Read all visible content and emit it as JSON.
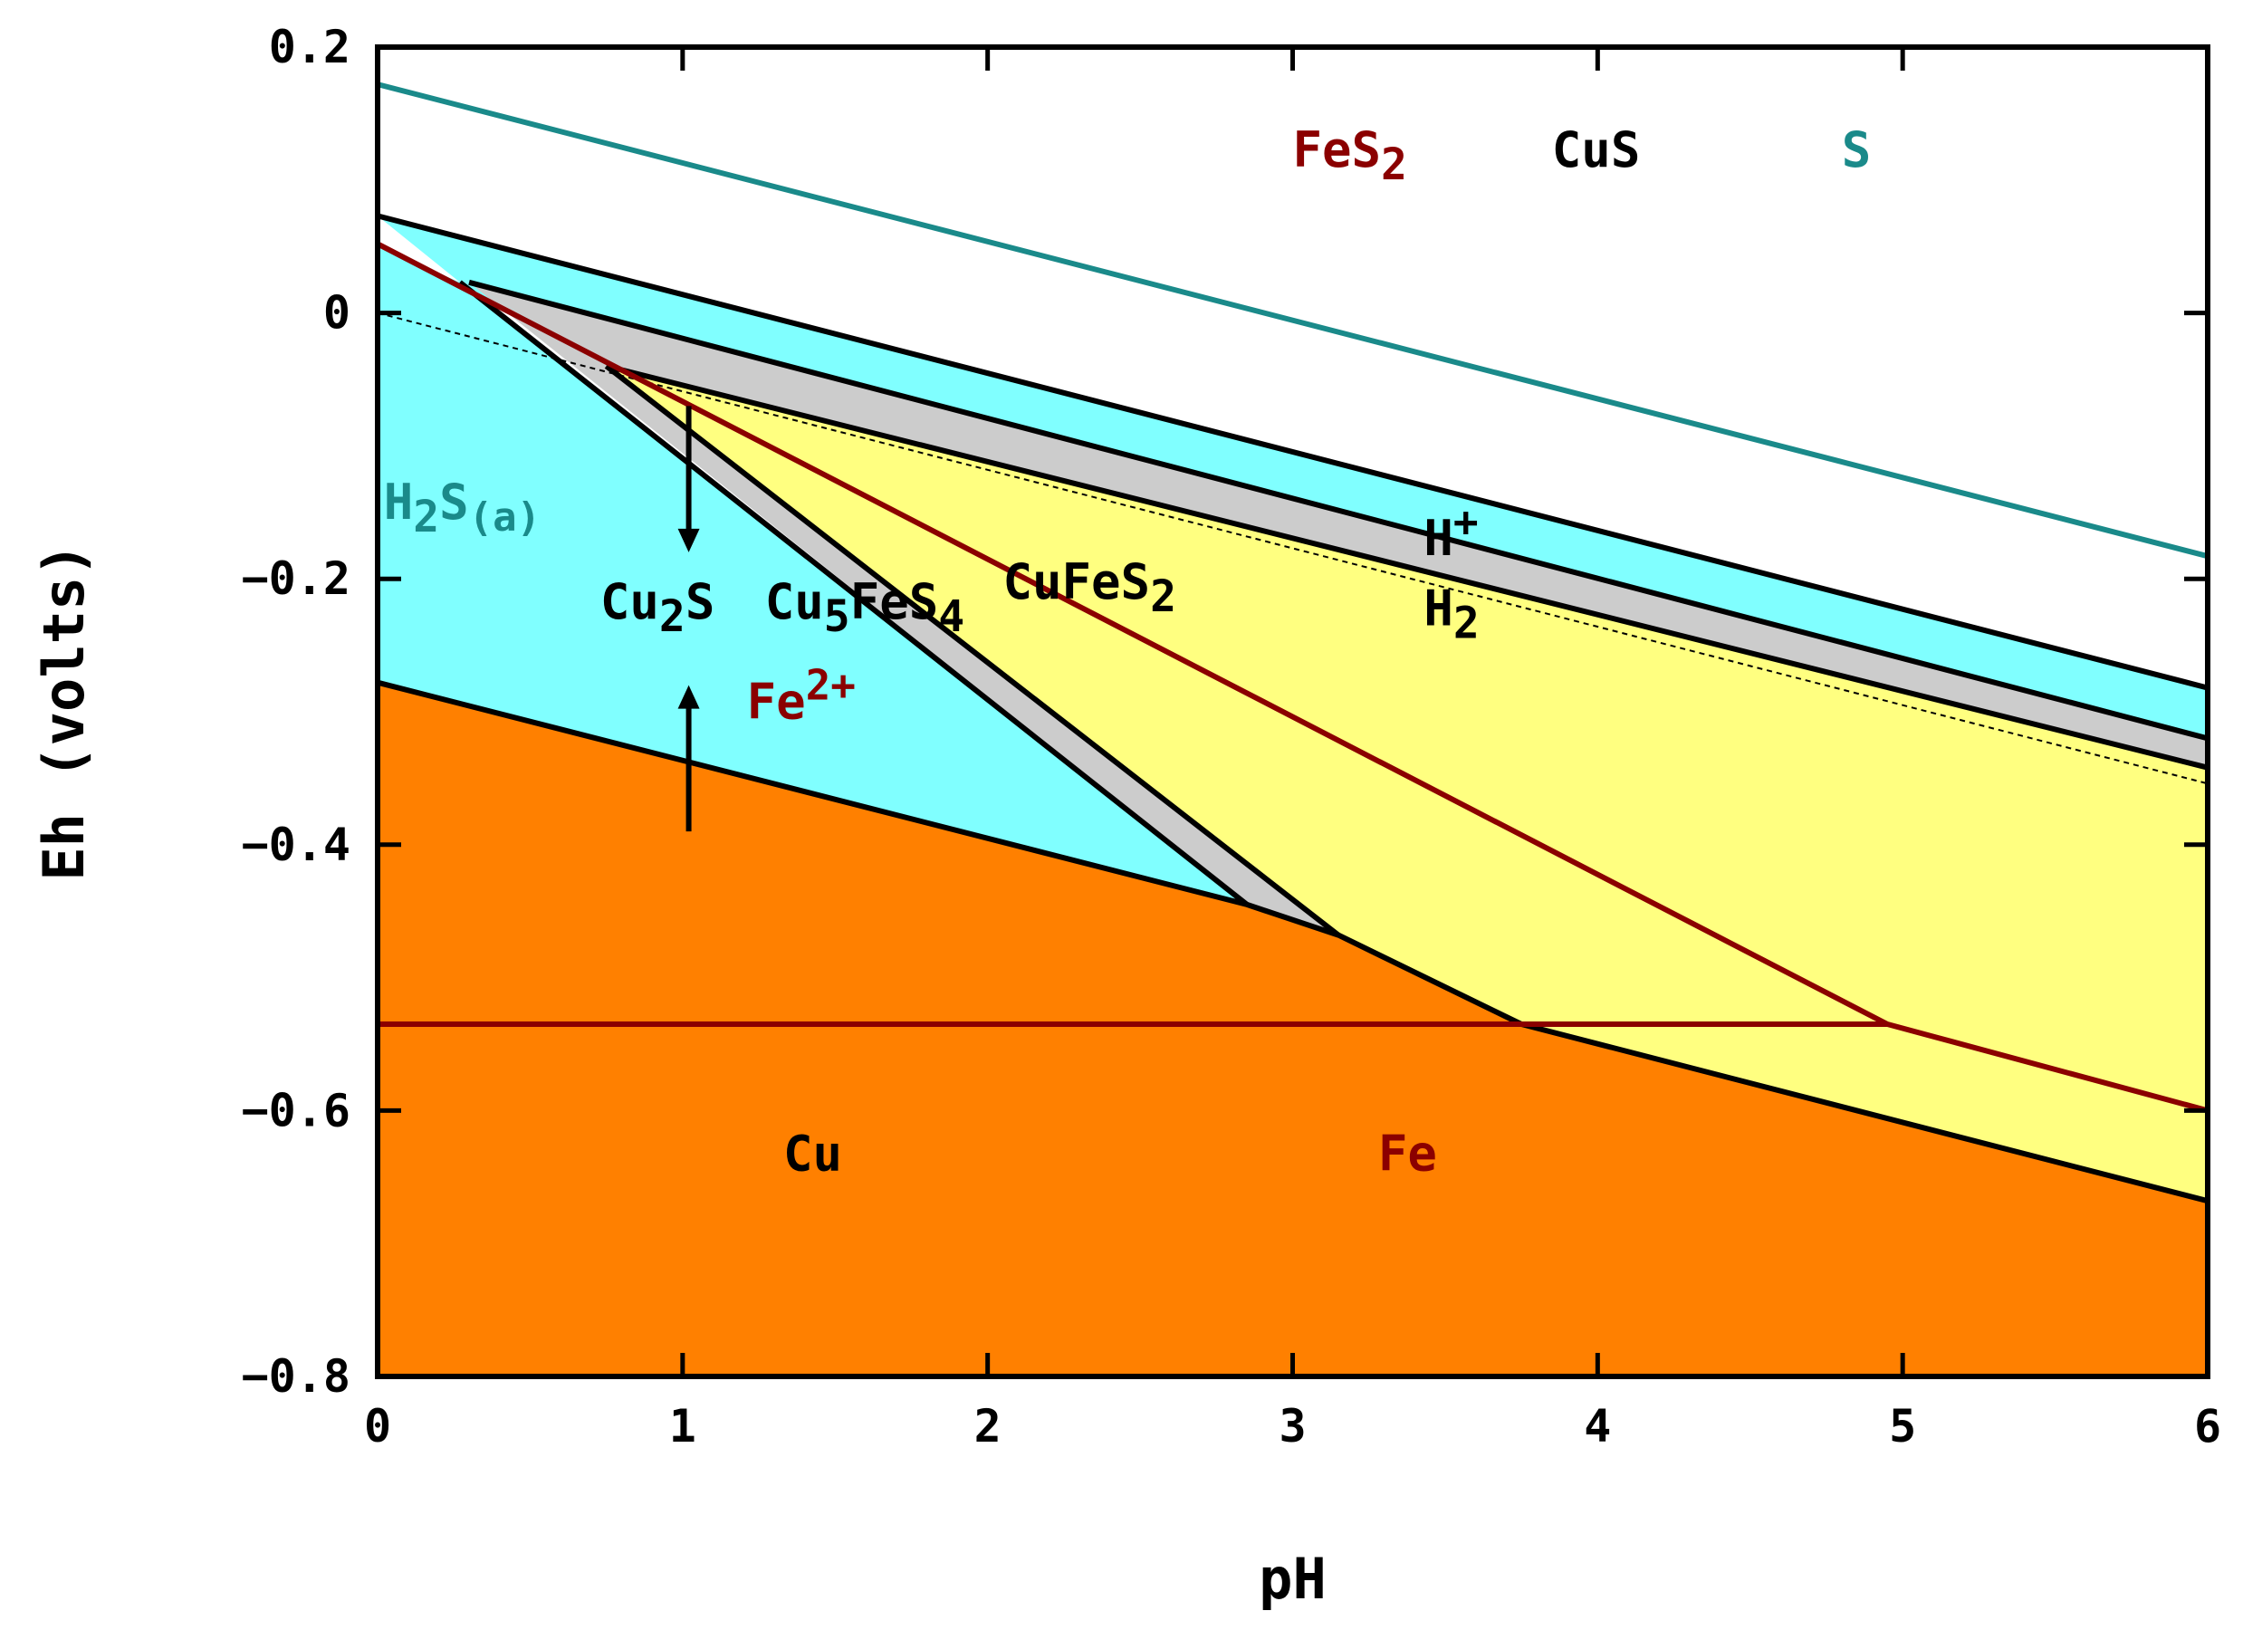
{
  "chart_data": {
    "type": "area",
    "title": "",
    "xlabel": "pH",
    "ylabel": "Eh (volts)",
    "xlim": [
      0,
      6
    ],
    "ylim": [
      -0.8,
      0.2
    ],
    "xticks": [
      0,
      1,
      2,
      3,
      4,
      5,
      6
    ],
    "yticks": [
      0.2,
      0,
      -0.2,
      -0.4,
      -0.6,
      -0.8
    ],
    "xtick_labels": [
      "0",
      "1",
      "2",
      "3",
      "4",
      "5",
      "6"
    ],
    "ytick_labels": [
      "0.2",
      "0",
      "−0.2",
      "−0.4",
      "−0.6",
      "−0.8"
    ],
    "grid": false,
    "colors": {
      "s_line": "#1a8a8a",
      "fe_line": "#8b0000",
      "cu_line": "#000000",
      "field_cyan": "#80ffff",
      "field_grey": "#cccccc",
      "field_yellow": "#ffff80",
      "field_orange": "#ff8000"
    },
    "regions": [
      {
        "name": "cyan-field",
        "fill": "#80ffff",
        "polygon": [
          [
            0,
            0.073
          ],
          [
            6,
            -0.282
          ],
          [
            6,
            -0.32
          ],
          [
            0.75,
            -0.04
          ],
          [
            0.27,
            0.023
          ],
          [
            0,
            0.05
          ],
          [
            0,
            -0.278
          ],
          [
            2.85,
            -0.445
          ],
          [
            0.27,
            0.023
          ]
        ]
      },
      {
        "name": "grey-band-upper",
        "fill": "#cccccc",
        "polygon": [
          [
            0.3,
            0.023
          ],
          [
            6,
            -0.32
          ],
          [
            6,
            -0.342
          ],
          [
            0.75,
            -0.04
          ]
        ]
      },
      {
        "name": "grey-band-lower",
        "fill": "#cccccc",
        "polygon": [
          [
            0.3,
            0.023
          ],
          [
            0.75,
            -0.04
          ],
          [
            3.15,
            -0.468
          ],
          [
            2.85,
            -0.445
          ]
        ]
      },
      {
        "name": "yellow-field",
        "fill": "#ffff80",
        "polygon": [
          [
            0.75,
            -0.04
          ],
          [
            6,
            -0.342
          ],
          [
            6,
            -0.668
          ],
          [
            3.75,
            -0.535
          ],
          [
            3.15,
            -0.468
          ]
        ]
      },
      {
        "name": "orange-field",
        "fill": "#ff8000",
        "polygon": [
          [
            0,
            -0.278
          ],
          [
            2.85,
            -0.445
          ],
          [
            3.15,
            -0.468
          ],
          [
            3.75,
            -0.535
          ],
          [
            6,
            -0.668
          ],
          [
            6,
            -0.8
          ],
          [
            0,
            -0.8
          ]
        ]
      }
    ],
    "boundaries": [
      {
        "name": "s-boundary",
        "color": "#1a8a8a",
        "points": [
          [
            0,
            0.172
          ],
          [
            6,
            -0.183
          ]
        ]
      },
      {
        "name": "cus-upper-boundary",
        "color": "#000000",
        "points": [
          [
            0,
            0.073
          ],
          [
            6,
            -0.282
          ]
        ]
      },
      {
        "name": "cus-grey-boundary",
        "color": "#000000",
        "points": [
          [
            0.3,
            0.023
          ],
          [
            6,
            -0.32
          ]
        ]
      },
      {
        "name": "cufes2-upper-boundary",
        "color": "#000000",
        "points": [
          [
            0.75,
            -0.04
          ],
          [
            6,
            -0.342
          ]
        ]
      },
      {
        "name": "cu2s-cu5fes4-boundary",
        "color": "#000000",
        "points": [
          [
            0.27,
            0.023
          ],
          [
            2.85,
            -0.445
          ]
        ]
      },
      {
        "name": "cu5fes4-cufes2-boundary",
        "color": "#000000",
        "points": [
          [
            0.75,
            -0.04
          ],
          [
            3.15,
            -0.468
          ]
        ]
      },
      {
        "name": "h2s-cu-boundary",
        "color": "#000000",
        "points": [
          [
            0,
            -0.278
          ],
          [
            2.85,
            -0.445
          ]
        ]
      },
      {
        "name": "sulfide-metal-boundary",
        "color": "#000000",
        "points": [
          [
            2.85,
            -0.445
          ],
          [
            3.15,
            -0.468
          ],
          [
            3.75,
            -0.535
          ],
          [
            6,
            -0.668
          ]
        ]
      },
      {
        "name": "fes2-diagonal-boundary",
        "color": "#8b0000",
        "points": [
          [
            0,
            0.052
          ],
          [
            4.95,
            -0.535
          ],
          [
            6,
            -0.6
          ]
        ]
      },
      {
        "name": "fe-metal-boundary",
        "color": "#8b0000",
        "points": [
          [
            0,
            -0.535
          ],
          [
            4.95,
            -0.535
          ]
        ]
      }
    ],
    "water_line": {
      "name": "h2-water-line",
      "points": [
        [
          0,
          0
        ],
        [
          6,
          -0.354
        ]
      ]
    },
    "arrows": [
      {
        "name": "arrow-down",
        "x": 1.02,
        "from": -0.07,
        "to": -0.18
      },
      {
        "name": "arrow-up",
        "x": 1.02,
        "from": -0.39,
        "to": -0.28
      }
    ],
    "labels": [
      {
        "name": "label-fes2",
        "text": "FeS",
        "sub": "2",
        "x": 3.0,
        "y": 0.11,
        "color": "#8b0000"
      },
      {
        "name": "label-cus",
        "text": "CuS",
        "x": 3.85,
        "y": 0.11,
        "color": "#000000"
      },
      {
        "name": "label-s",
        "text": "S",
        "x": 4.8,
        "y": 0.11,
        "color": "#1a8a8a"
      },
      {
        "name": "label-h2s",
        "text": "H",
        "sub": "2",
        "tail": "S",
        "tail_sub": "(a)",
        "x": 0.02,
        "y": -0.155,
        "color": "#1a8a8a"
      },
      {
        "name": "label-cu2s",
        "text": "Cu",
        "sub": "2",
        "tail": "S",
        "x": 0.73,
        "y": -0.23,
        "color": "#000000"
      },
      {
        "name": "label-cu5fes4",
        "text": "Cu",
        "sub": "5",
        "tail": "FeS",
        "tail_sub2": "4",
        "x": 1.27,
        "y": -0.23,
        "color": "#000000"
      },
      {
        "name": "label-cufes2",
        "text": "CuFeS",
        "sub": "2",
        "x": 2.05,
        "y": -0.215,
        "color": "#000000"
      },
      {
        "name": "label-h-plus",
        "text": "H",
        "sup": "+",
        "x": 3.43,
        "y": -0.182,
        "color": "#000000"
      },
      {
        "name": "label-h2",
        "text": "H",
        "sub": "2",
        "x": 3.43,
        "y": -0.235,
        "color": "#000000"
      },
      {
        "name": "label-fe2plus",
        "text": "Fe",
        "sup": "2+",
        "x": 1.21,
        "y": -0.305,
        "color": "#8b0000"
      },
      {
        "name": "label-cu",
        "text": "Cu",
        "x": 1.33,
        "y": -0.645,
        "color": "#000000"
      },
      {
        "name": "label-fe",
        "text": "Fe",
        "x": 3.28,
        "y": -0.645,
        "color": "#8b0000"
      }
    ]
  }
}
